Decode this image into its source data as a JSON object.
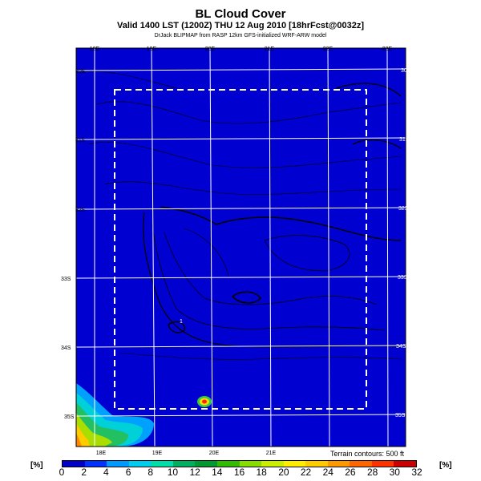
{
  "header": {
    "title": "BL Cloud Cover",
    "subtitle": "Valid 1400 LST (1200Z) THU 12 Aug 2010 [18hrFcst@0032z]",
    "credit": "DrJack BLIPMAP from RASP 12km GFS-initialized WRF-ARW model"
  },
  "map": {
    "top_lon_labels": [
      "18E",
      "19E",
      "20E",
      "21E",
      "22E",
      "23E"
    ],
    "bottom_lon_labels": [
      "18E",
      "19E",
      "20E",
      "21E"
    ],
    "left_lat_labels": [
      "30S",
      "31S",
      "32S",
      "33S",
      "34S",
      "35S"
    ],
    "right_lat_labels": [
      "30S",
      "31S",
      "32S",
      "33S",
      "34S",
      "35S"
    ],
    "point_label": "1",
    "terrain_note": "Terrain contours: 500 ft",
    "background_color": "#0000d0"
  },
  "colorbar": {
    "unit_left": "[%]",
    "unit_right": "[%]",
    "labels": [
      "0",
      "2",
      "4",
      "6",
      "8",
      "10",
      "12",
      "14",
      "16",
      "18",
      "20",
      "22",
      "24",
      "26",
      "28",
      "30",
      "32"
    ],
    "colors": [
      "#0000c8",
      "#0033ff",
      "#0099ff",
      "#00ccee",
      "#00ddaa",
      "#00b060",
      "#009a30",
      "#33bb00",
      "#88dd00",
      "#ccee00",
      "#ffee00",
      "#ffcc00",
      "#ff9900",
      "#ff6600",
      "#ff3300",
      "#cc0000"
    ]
  }
}
